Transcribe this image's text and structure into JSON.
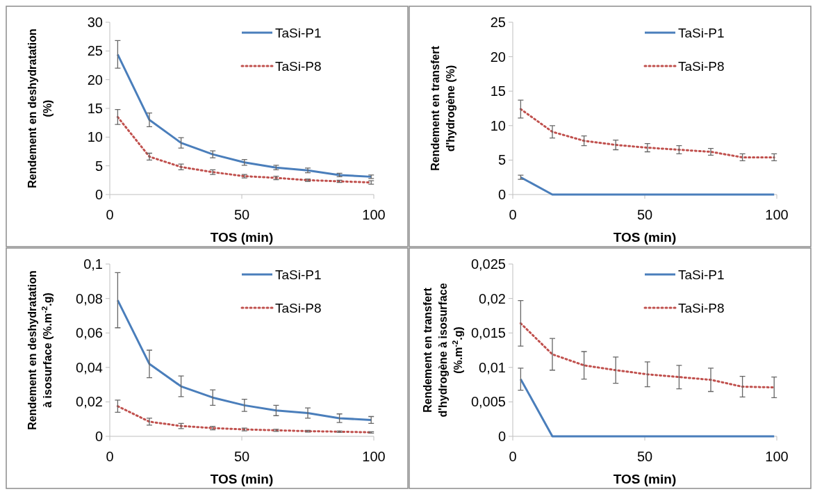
{
  "chart_data": [
    {
      "type": "line",
      "ylabel": "Rendement en deshydratation (%)",
      "xlabel": "TOS (min)",
      "x": [
        3,
        15,
        27,
        39,
        51,
        63,
        75,
        87,
        99
      ],
      "xlim": [
        0,
        100
      ],
      "xticks": [
        0,
        50,
        100
      ],
      "ylim": [
        0,
        30
      ],
      "yticks": [
        0,
        5,
        10,
        15,
        20,
        25,
        30
      ],
      "legend": "top right",
      "series": [
        {
          "name": "TaSi-P1",
          "color": "#4a7ebb",
          "line_style": "solid",
          "values": [
            24.4,
            13,
            9,
            7,
            5.6,
            4.7,
            4.2,
            3.4,
            3.1
          ],
          "errors": [
            2.4,
            1.2,
            0.9,
            0.6,
            0.5,
            0.4,
            0.4,
            0.3,
            0.3
          ]
        },
        {
          "name": "TaSi-P8",
          "color": "#c0504d",
          "line_style": "dotted",
          "values": [
            13.5,
            6.6,
            4.8,
            3.9,
            3.2,
            2.9,
            2.5,
            2.3,
            2.1
          ],
          "errors": [
            1.3,
            0.6,
            0.5,
            0.4,
            0.3,
            0.3,
            0.2,
            0.2,
            0.3
          ]
        }
      ]
    },
    {
      "type": "line",
      "ylabel": "Rendement en transfert d'hydrogène (%)",
      "xlabel": "TOS (min)",
      "x": [
        3,
        15,
        27,
        39,
        51,
        63,
        75,
        87,
        99
      ],
      "xlim": [
        0,
        100
      ],
      "xticks": [
        0,
        50,
        100
      ],
      "ylim": [
        0,
        25
      ],
      "yticks": [
        0,
        5,
        10,
        15,
        20,
        25
      ],
      "legend": "top right",
      "series": [
        {
          "name": "TaSi-P1",
          "color": "#4a7ebb",
          "line_style": "solid",
          "values": [
            2.5,
            0,
            0,
            0,
            0,
            0,
            0,
            0,
            0
          ],
          "errors": [
            0.3,
            null,
            null,
            null,
            null,
            null,
            null,
            null,
            null
          ]
        },
        {
          "name": "TaSi-P8",
          "color": "#c0504d",
          "line_style": "dotted",
          "values": [
            12.4,
            9.1,
            7.8,
            7.2,
            6.8,
            6.5,
            6.2,
            5.4,
            5.4
          ],
          "errors": [
            1.3,
            0.9,
            0.7,
            0.7,
            0.6,
            0.6,
            0.5,
            0.5,
            0.5
          ]
        }
      ]
    },
    {
      "type": "line",
      "ylabel": "Rendement en deshydratation à isosurface (%.m$^{-2}$.g)",
      "xlabel": "TOS (min)",
      "x": [
        3,
        15,
        27,
        39,
        51,
        63,
        75,
        87,
        99
      ],
      "xlim": [
        0,
        100
      ],
      "xticks": [
        0,
        50,
        100
      ],
      "ylim": [
        0,
        0.1
      ],
      "yticks": [
        0,
        {
          "value": 0.02,
          "label": "0,02"
        },
        {
          "value": 0.04,
          "label": "0,04"
        },
        {
          "value": 0.06,
          "label": "0,06"
        },
        {
          "value": 0.08,
          "label": "0,08"
        },
        {
          "value": 0.1,
          "label": "0,1"
        }
      ],
      "legend": "top right",
      "series": [
        {
          "name": "TaSi-P1",
          "color": "#4a7ebb",
          "line_style": "solid",
          "values": [
            0.079,
            0.042,
            0.029,
            0.0225,
            0.018,
            0.015,
            0.0135,
            0.0105,
            0.0095
          ],
          "errors": [
            0.016,
            0.008,
            0.006,
            0.0045,
            0.0035,
            0.003,
            0.003,
            0.0025,
            0.002
          ]
        },
        {
          "name": "TaSi-P8",
          "color": "#c0504d",
          "line_style": "dotted",
          "values": [
            0.0175,
            0.0085,
            0.006,
            0.0048,
            0.004,
            0.0035,
            0.003,
            0.0027,
            0.0023
          ],
          "errors": [
            0.0035,
            0.002,
            0.0015,
            0.001,
            0.0008,
            0.0006,
            0.0005,
            0.0004,
            0.0004
          ]
        }
      ]
    },
    {
      "type": "line",
      "ylabel": "Rendement en transfert d'hydrogène à isosurface (%.m$^{-2}$.g)",
      "xlabel": "TOS (min)",
      "x": [
        3,
        15,
        27,
        39,
        51,
        63,
        75,
        87,
        99
      ],
      "xlim": [
        0,
        100
      ],
      "xticks": [
        0,
        50,
        100
      ],
      "ylim": [
        0,
        0.025
      ],
      "yticks": [
        0,
        {
          "value": 0.005,
          "label": "0,005"
        },
        {
          "value": 0.01,
          "label": "0,01"
        },
        {
          "value": 0.015,
          "label": "0,015"
        },
        {
          "value": 0.02,
          "label": "0,02"
        },
        {
          "value": 0.025,
          "label": "0,025"
        }
      ],
      "legend": "top right",
      "series": [
        {
          "name": "TaSi-P1",
          "color": "#4a7ebb",
          "line_style": "solid",
          "values": [
            0.0083,
            0,
            0,
            0,
            0,
            0,
            0,
            0,
            0
          ],
          "errors": [
            0.0016,
            null,
            null,
            null,
            null,
            null,
            null,
            null,
            null
          ]
        },
        {
          "name": "TaSi-P8",
          "color": "#c0504d",
          "line_style": "dotted",
          "values": [
            0.0164,
            0.0119,
            0.0103,
            0.0096,
            0.009,
            0.0086,
            0.0082,
            0.0072,
            0.0071
          ],
          "errors": [
            0.0033,
            0.0023,
            0.002,
            0.0019,
            0.0018,
            0.0017,
            0.0017,
            0.0015,
            0.0015
          ]
        }
      ]
    }
  ]
}
